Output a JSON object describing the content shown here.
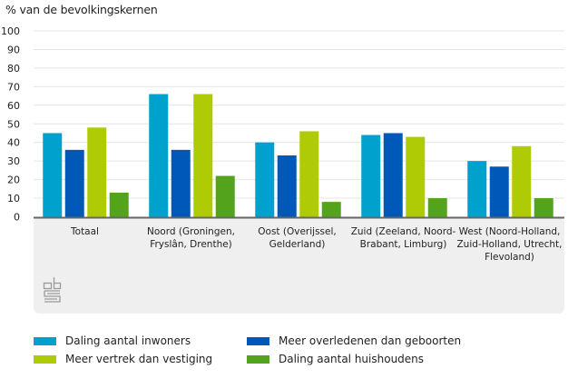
{
  "chart_data": {
    "type": "bar",
    "title": "",
    "ylabel": "% van de bevolkingskernen",
    "xlabel": "",
    "ylim": [
      0,
      100
    ],
    "yticks": [
      0,
      10,
      20,
      30,
      40,
      50,
      60,
      70,
      80,
      90,
      100
    ],
    "grid": true,
    "legend_position": "bottom",
    "categories": [
      [
        "Totaal"
      ],
      [
        "Noord (Groningen,",
        "Fryslân, Drenthe)"
      ],
      [
        "Oost (Overijssel,",
        "Gelderland)"
      ],
      [
        "Zuid (Zeeland, Noord-",
        "Brabant, Limburg)"
      ],
      [
        "West (Noord-Holland,",
        "Zuid-Holland, Utrecht,",
        "Flevoland)"
      ]
    ],
    "series": [
      {
        "name": "Daling aantal inwoners",
        "color": "#00a1cd",
        "values": [
          45,
          66,
          40,
          44,
          30
        ]
      },
      {
        "name": "Meer overledenen dan geboorten",
        "color": "#0058b8",
        "values": [
          36,
          36,
          33,
          45,
          27
        ]
      },
      {
        "name": "Meer vertrek dan vestiging",
        "color": "#afcb05",
        "values": [
          48,
          66,
          46,
          43,
          38
        ]
      },
      {
        "name": "Daling aantal huishoudens",
        "color": "#53a31d",
        "values": [
          13,
          22,
          8,
          10,
          10
        ]
      }
    ]
  },
  "logo": "cbs-logo"
}
